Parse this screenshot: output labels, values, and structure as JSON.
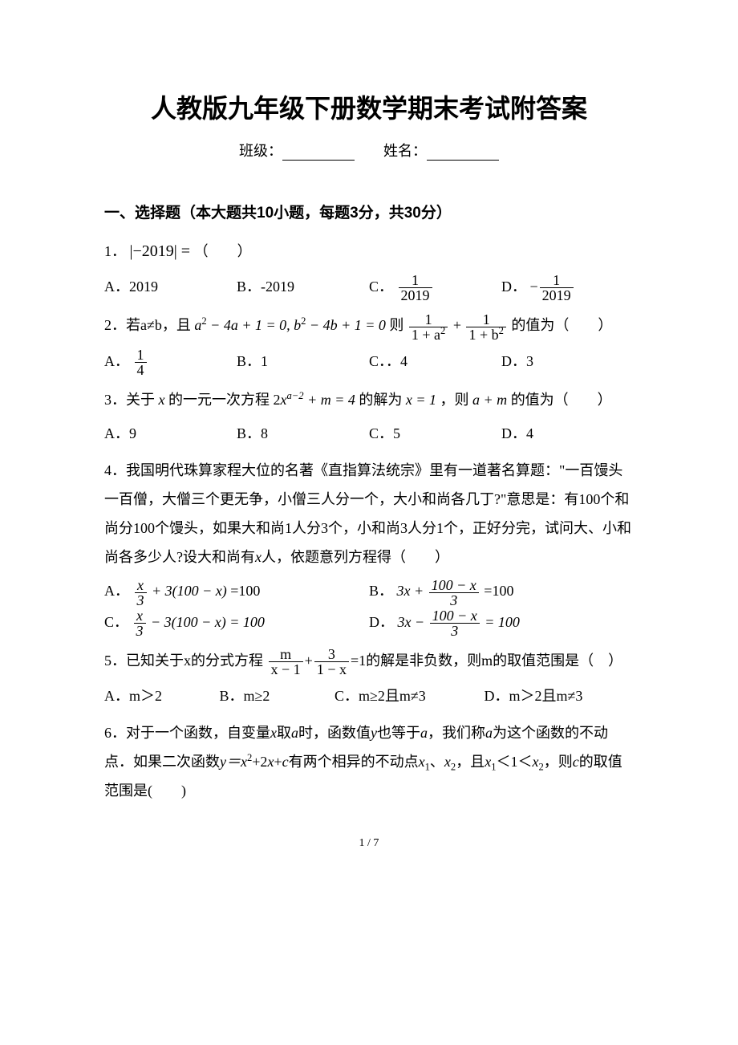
{
  "title": "人教版九年级下册数学期末考试附答案",
  "info": {
    "class_label": "班级：",
    "name_label": "姓名："
  },
  "section1": "一、选择题（本大题共10小题，每题3分，共30分）",
  "q1": {
    "num": "1．",
    "abs_l": "|",
    "abs_n": "−2019",
    "abs_r": "| =",
    "tail": "（　　）",
    "A": "A．2019",
    "B": "B．-2019",
    "C_pre": "C．",
    "C_n": "1",
    "C_d": "2019",
    "D_pre": "D．",
    "D_neg": "−",
    "D_n": "1",
    "D_d": "2019"
  },
  "q2": {
    "num": "2．若a≠b，且",
    "eq": "a",
    "eq_sup2a": "2",
    "eq_mid1": " − 4a + 1 = 0, b",
    "eq_sup2b": "2",
    "eq_mid2": " − 4b + 1 = 0",
    "ze": "则",
    "f1n": "1",
    "f1d_l": "1 + a",
    "f1d_sup": "2",
    "plus": " + ",
    "f2n": "1",
    "f2d_l": "1 + b",
    "f2d_sup": "2",
    "tail": "的值为（　　）",
    "A_pre": "A．",
    "A_n": "1",
    "A_d": "4",
    "B": "B．1",
    "C": "C．．4",
    "D": "D．3"
  },
  "q3": {
    "txt1": "3．关于",
    "x": "x",
    "txt2": "的一元一次方程",
    "two": "2",
    "xvar": "x",
    "exp_l": "a−2",
    "plus": " + m = 4",
    "txt3": "的解为",
    "x1": "x = 1",
    "txt4": "，则",
    "am": "a + m",
    "txt5": "的值为（　　）",
    "A": "A．9",
    "B": "B．8",
    "C": "C．5",
    "D": "D．4"
  },
  "q4": {
    "body": "4．我国明代珠算家程大位的名著《直指算法统宗》里有一道著名算题：\"一百馒头一百僧，大僧三个更无争，小僧三人分一个，大小和尚各几丁?\"意思是：有100个和尚分100个馒头，如果大和尚1人分3个，小和尚3人分1个，正好分完，试问大、小和尚各多少人?设大和尚有",
    "x": "x",
    "body2": "人，依题意列方程得（　　）",
    "A_pre": "A．",
    "A_fn": "x",
    "A_fd": "3",
    "A_tail": " + 3(100 − x)",
    "A_eq": "=100",
    "B_pre": "B．",
    "B_l": "3x + ",
    "B_fn": "100 − x",
    "B_fd": "3",
    "B_eq": " =100",
    "C_pre": "C．",
    "C_fn": "x",
    "C_fd": "3",
    "C_tail": " − 3(100 − x) = 100",
    "D_pre": "D．",
    "D_l": "3x − ",
    "D_fn": "100 − x",
    "D_fd": "3",
    "D_eq": " = 100"
  },
  "q5": {
    "txt1": "5．已知关于x的分式方程",
    "f1n": "m",
    "f1d": "x − 1",
    "plus": "+",
    "f2n": "3",
    "f2d": "1 − x",
    "eq": "=1的解是非负数，则m的取值范围是（　）",
    "A": "A．m＞2",
    "B": "B．m≥2",
    "C": "C．m≥2且m≠3",
    "D": "D．m＞2且m≠3"
  },
  "q6": {
    "body1": "6．对于一个函数，自变量",
    "x": "x",
    "body2": "取",
    "a": "a",
    "body3": "时，函数值",
    "y": "y",
    "body4": "也等于",
    "a2": "a",
    "body5": "，我们称",
    "a3": "a",
    "body6": "为这个函数的不动点．如果二次函数",
    "yf": "y＝x",
    "sup2": "2",
    "body7": "+2",
    "xv": "x",
    "body8": "+",
    "cv": "c",
    "body9": "有两个相异的不动点",
    "x1": "x",
    "s1": "1",
    "dun": "、",
    "x2": "x",
    "s2": "2",
    "body10": "，且",
    "xa": "x",
    "sa": "1",
    "lt1": "＜1＜",
    "xb": "x",
    "sb": "2",
    "body11": "，则",
    "cv2": "c",
    "body12": "的取值范围是(　　)"
  },
  "page_num": "1 / 7"
}
